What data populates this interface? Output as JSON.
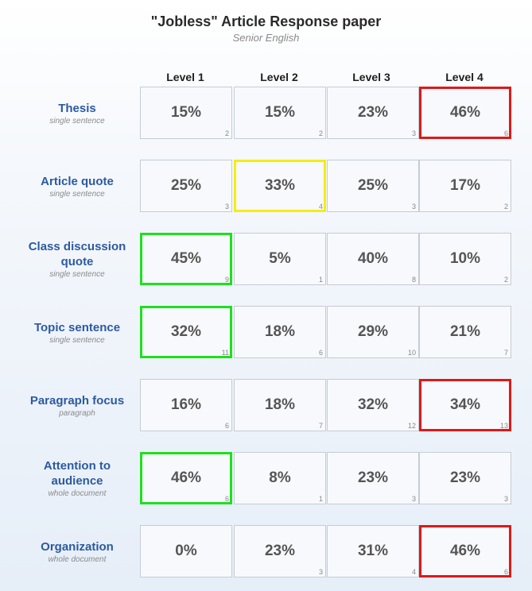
{
  "header": {
    "title": "\"Jobless\" Article Response paper",
    "subtitle": "Senior English"
  },
  "levels": [
    "Level 1",
    "Level 2",
    "Level 3",
    "Level 4"
  ],
  "highlight_colors": {
    "red": "#e01818",
    "yellow": "#f4ee10",
    "green": "#1ee01e"
  },
  "rows": [
    {
      "title": "Thesis",
      "subtitle": "single sentence",
      "cells": [
        {
          "pct": "15%",
          "count": "2",
          "highlight": ""
        },
        {
          "pct": "15%",
          "count": "2",
          "highlight": ""
        },
        {
          "pct": "23%",
          "count": "3",
          "highlight": ""
        },
        {
          "pct": "46%",
          "count": "6",
          "highlight": "red"
        }
      ]
    },
    {
      "title": "Article quote",
      "subtitle": "single sentence",
      "cells": [
        {
          "pct": "25%",
          "count": "3",
          "highlight": ""
        },
        {
          "pct": "33%",
          "count": "4",
          "highlight": "yellow"
        },
        {
          "pct": "25%",
          "count": "3",
          "highlight": ""
        },
        {
          "pct": "17%",
          "count": "2",
          "highlight": ""
        }
      ]
    },
    {
      "title": "Class discussion quote",
      "subtitle": "single sentence",
      "cells": [
        {
          "pct": "45%",
          "count": "9",
          "highlight": "green"
        },
        {
          "pct": "5%",
          "count": "1",
          "highlight": ""
        },
        {
          "pct": "40%",
          "count": "8",
          "highlight": ""
        },
        {
          "pct": "10%",
          "count": "2",
          "highlight": ""
        }
      ]
    },
    {
      "title": "Topic sentence",
      "subtitle": "single sentence",
      "cells": [
        {
          "pct": "32%",
          "count": "11",
          "highlight": "green"
        },
        {
          "pct": "18%",
          "count": "6",
          "highlight": ""
        },
        {
          "pct": "29%",
          "count": "10",
          "highlight": ""
        },
        {
          "pct": "21%",
          "count": "7",
          "highlight": ""
        }
      ]
    },
    {
      "title": "Paragraph focus",
      "subtitle": "paragraph",
      "cells": [
        {
          "pct": "16%",
          "count": "6",
          "highlight": ""
        },
        {
          "pct": "18%",
          "count": "7",
          "highlight": ""
        },
        {
          "pct": "32%",
          "count": "12",
          "highlight": ""
        },
        {
          "pct": "34%",
          "count": "13",
          "highlight": "red"
        }
      ]
    },
    {
      "title": "Attention to audience",
      "subtitle": "whole document",
      "cells": [
        {
          "pct": "46%",
          "count": "6",
          "highlight": "green"
        },
        {
          "pct": "8%",
          "count": "1",
          "highlight": ""
        },
        {
          "pct": "23%",
          "count": "3",
          "highlight": ""
        },
        {
          "pct": "23%",
          "count": "3",
          "highlight": ""
        }
      ]
    },
    {
      "title": "Organization",
      "subtitle": "whole document",
      "cells": [
        {
          "pct": "0%",
          "count": "",
          "highlight": ""
        },
        {
          "pct": "23%",
          "count": "3",
          "highlight": ""
        },
        {
          "pct": "31%",
          "count": "4",
          "highlight": ""
        },
        {
          "pct": "46%",
          "count": "6",
          "highlight": "red"
        }
      ]
    }
  ]
}
